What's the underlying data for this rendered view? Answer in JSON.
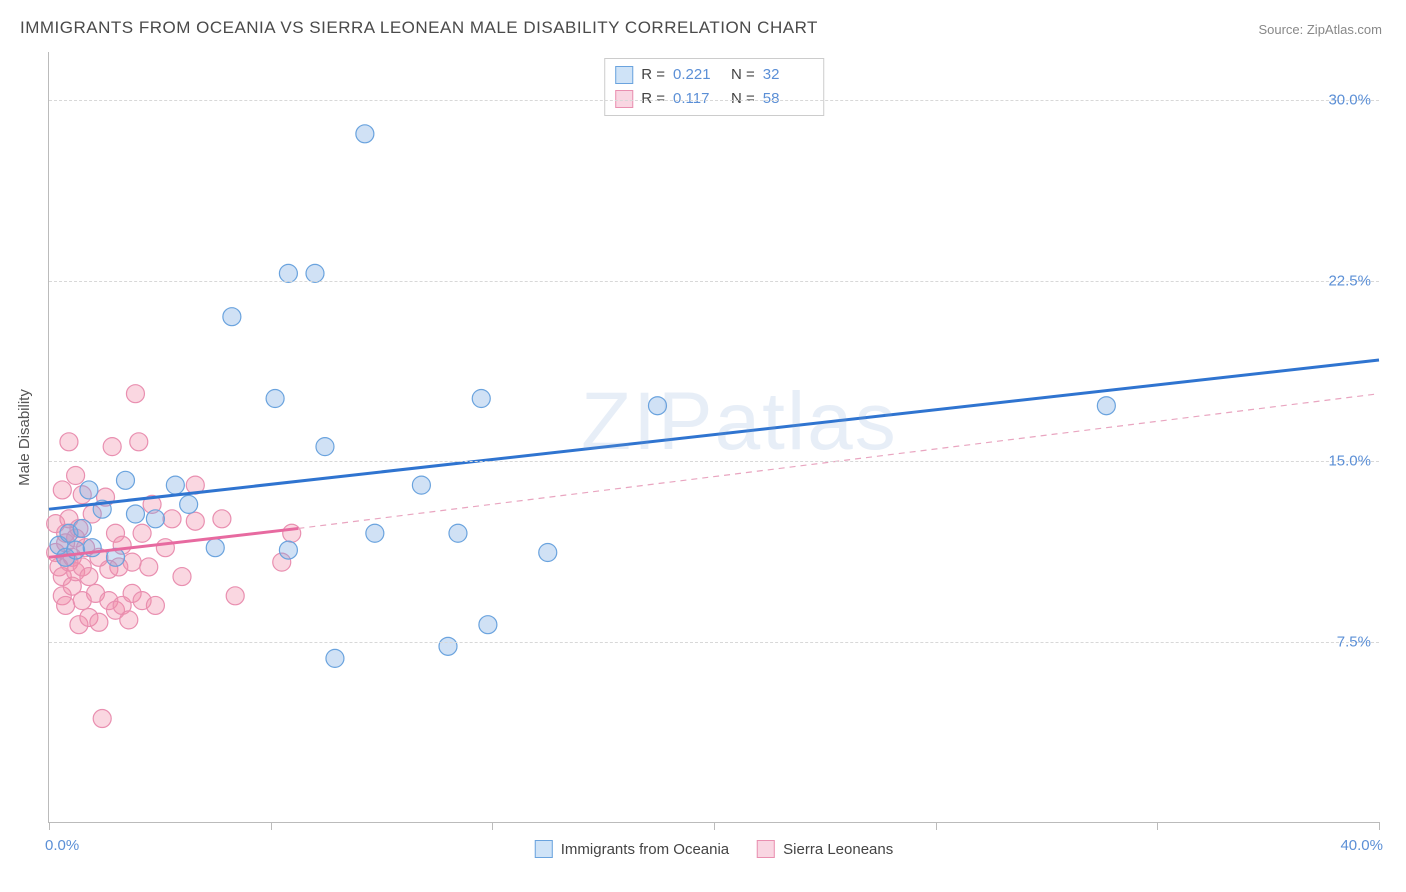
{
  "title": "IMMIGRANTS FROM OCEANIA VS SIERRA LEONEAN MALE DISABILITY CORRELATION CHART",
  "source_label": "Source: ",
  "source_value": "ZipAtlas.com",
  "watermark": "ZIPatlas",
  "ylabel": "Male Disability",
  "chart": {
    "type": "scatter",
    "xlim": [
      0,
      40
    ],
    "ylim": [
      0,
      32
    ],
    "x_tick_positions": [
      0,
      6.67,
      13.33,
      20,
      26.67,
      33.33,
      40
    ],
    "y_ticks": [
      7.5,
      15.0,
      22.5,
      30.0
    ],
    "y_tick_labels": [
      "7.5%",
      "15.0%",
      "22.5%",
      "30.0%"
    ],
    "x_min_label": "0.0%",
    "x_max_label": "40.0%",
    "background_color": "#ffffff",
    "grid_color": "#d8d8d8",
    "tick_label_color": "#5b8fd6",
    "marker_radius": 9,
    "marker_stroke_width": 1.2,
    "series": [
      {
        "name": "Immigrants from Oceania",
        "fill_color": "rgba(120,170,225,0.35)",
        "stroke_color": "#6aa3de",
        "swatch_fill": "#cfe3f7",
        "swatch_border": "#6aa3de",
        "R": "0.221",
        "N": "32",
        "trend": {
          "x1": 0,
          "y1": 13.0,
          "x2": 40,
          "y2": 19.2,
          "stroke": "#2f74d0",
          "width": 3,
          "dash": ""
        },
        "trend_ext": null,
        "points": [
          [
            0.3,
            11.5
          ],
          [
            0.5,
            11.0
          ],
          [
            0.6,
            12.0
          ],
          [
            0.8,
            11.3
          ],
          [
            1.0,
            12.2
          ],
          [
            1.2,
            13.8
          ],
          [
            1.3,
            11.4
          ],
          [
            1.6,
            13.0
          ],
          [
            2.0,
            11.0
          ],
          [
            2.3,
            14.2
          ],
          [
            2.6,
            12.8
          ],
          [
            3.2,
            12.6
          ],
          [
            3.8,
            14.0
          ],
          [
            4.2,
            13.2
          ],
          [
            5.0,
            11.4
          ],
          [
            5.5,
            21.0
          ],
          [
            6.8,
            17.6
          ],
          [
            7.2,
            22.8
          ],
          [
            7.2,
            11.3
          ],
          [
            8.0,
            22.8
          ],
          [
            8.3,
            15.6
          ],
          [
            8.6,
            6.8
          ],
          [
            9.5,
            28.6
          ],
          [
            9.8,
            12.0
          ],
          [
            11.2,
            14.0
          ],
          [
            12.0,
            7.3
          ],
          [
            12.3,
            12.0
          ],
          [
            13.0,
            17.6
          ],
          [
            13.2,
            8.2
          ],
          [
            15.0,
            11.2
          ],
          [
            18.3,
            17.3
          ],
          [
            31.8,
            17.3
          ]
        ]
      },
      {
        "name": "Sierra Leoneans",
        "fill_color": "rgba(240,140,170,0.35)",
        "stroke_color": "#e98fb0",
        "swatch_fill": "#f9d6e2",
        "swatch_border": "#e98fb0",
        "R": "0.117",
        "N": "58",
        "trend": {
          "x1": 0,
          "y1": 11.0,
          "x2": 7.5,
          "y2": 12.2,
          "stroke": "#e76aa0",
          "width": 3,
          "dash": ""
        },
        "trend_ext": {
          "x1": 7.5,
          "y1": 12.2,
          "x2": 40,
          "y2": 17.8,
          "stroke": "#e9a5c0",
          "width": 1.2,
          "dash": "6,5"
        },
        "points": [
          [
            0.2,
            12.4
          ],
          [
            0.2,
            11.2
          ],
          [
            0.3,
            10.6
          ],
          [
            0.4,
            13.8
          ],
          [
            0.4,
            10.2
          ],
          [
            0.4,
            9.4
          ],
          [
            0.5,
            12.0
          ],
          [
            0.5,
            11.6
          ],
          [
            0.5,
            9.0
          ],
          [
            0.6,
            15.8
          ],
          [
            0.6,
            12.6
          ],
          [
            0.6,
            10.8
          ],
          [
            0.7,
            11.0
          ],
          [
            0.7,
            9.8
          ],
          [
            0.8,
            14.4
          ],
          [
            0.8,
            11.8
          ],
          [
            0.8,
            10.4
          ],
          [
            0.9,
            12.2
          ],
          [
            0.9,
            8.2
          ],
          [
            1.0,
            13.6
          ],
          [
            1.0,
            10.6
          ],
          [
            1.0,
            9.2
          ],
          [
            1.1,
            11.4
          ],
          [
            1.2,
            10.2
          ],
          [
            1.2,
            8.5
          ],
          [
            1.3,
            12.8
          ],
          [
            1.4,
            9.5
          ],
          [
            1.5,
            11.0
          ],
          [
            1.5,
            8.3
          ],
          [
            1.6,
            4.3
          ],
          [
            1.7,
            13.5
          ],
          [
            1.8,
            10.5
          ],
          [
            1.8,
            9.2
          ],
          [
            1.9,
            15.6
          ],
          [
            2.0,
            12.0
          ],
          [
            2.0,
            8.8
          ],
          [
            2.1,
            10.6
          ],
          [
            2.2,
            11.5
          ],
          [
            2.2,
            9.0
          ],
          [
            2.4,
            8.4
          ],
          [
            2.5,
            10.8
          ],
          [
            2.5,
            9.5
          ],
          [
            2.6,
            17.8
          ],
          [
            2.7,
            15.8
          ],
          [
            2.8,
            12.0
          ],
          [
            2.8,
            9.2
          ],
          [
            3.0,
            10.6
          ],
          [
            3.1,
            13.2
          ],
          [
            3.2,
            9.0
          ],
          [
            3.5,
            11.4
          ],
          [
            3.7,
            12.6
          ],
          [
            4.0,
            10.2
          ],
          [
            4.4,
            14.0
          ],
          [
            4.4,
            12.5
          ],
          [
            5.2,
            12.6
          ],
          [
            5.6,
            9.4
          ],
          [
            7.0,
            10.8
          ],
          [
            7.3,
            12.0
          ]
        ]
      }
    ]
  },
  "legend_top": {
    "R_label": "R =",
    "N_label": "N ="
  }
}
